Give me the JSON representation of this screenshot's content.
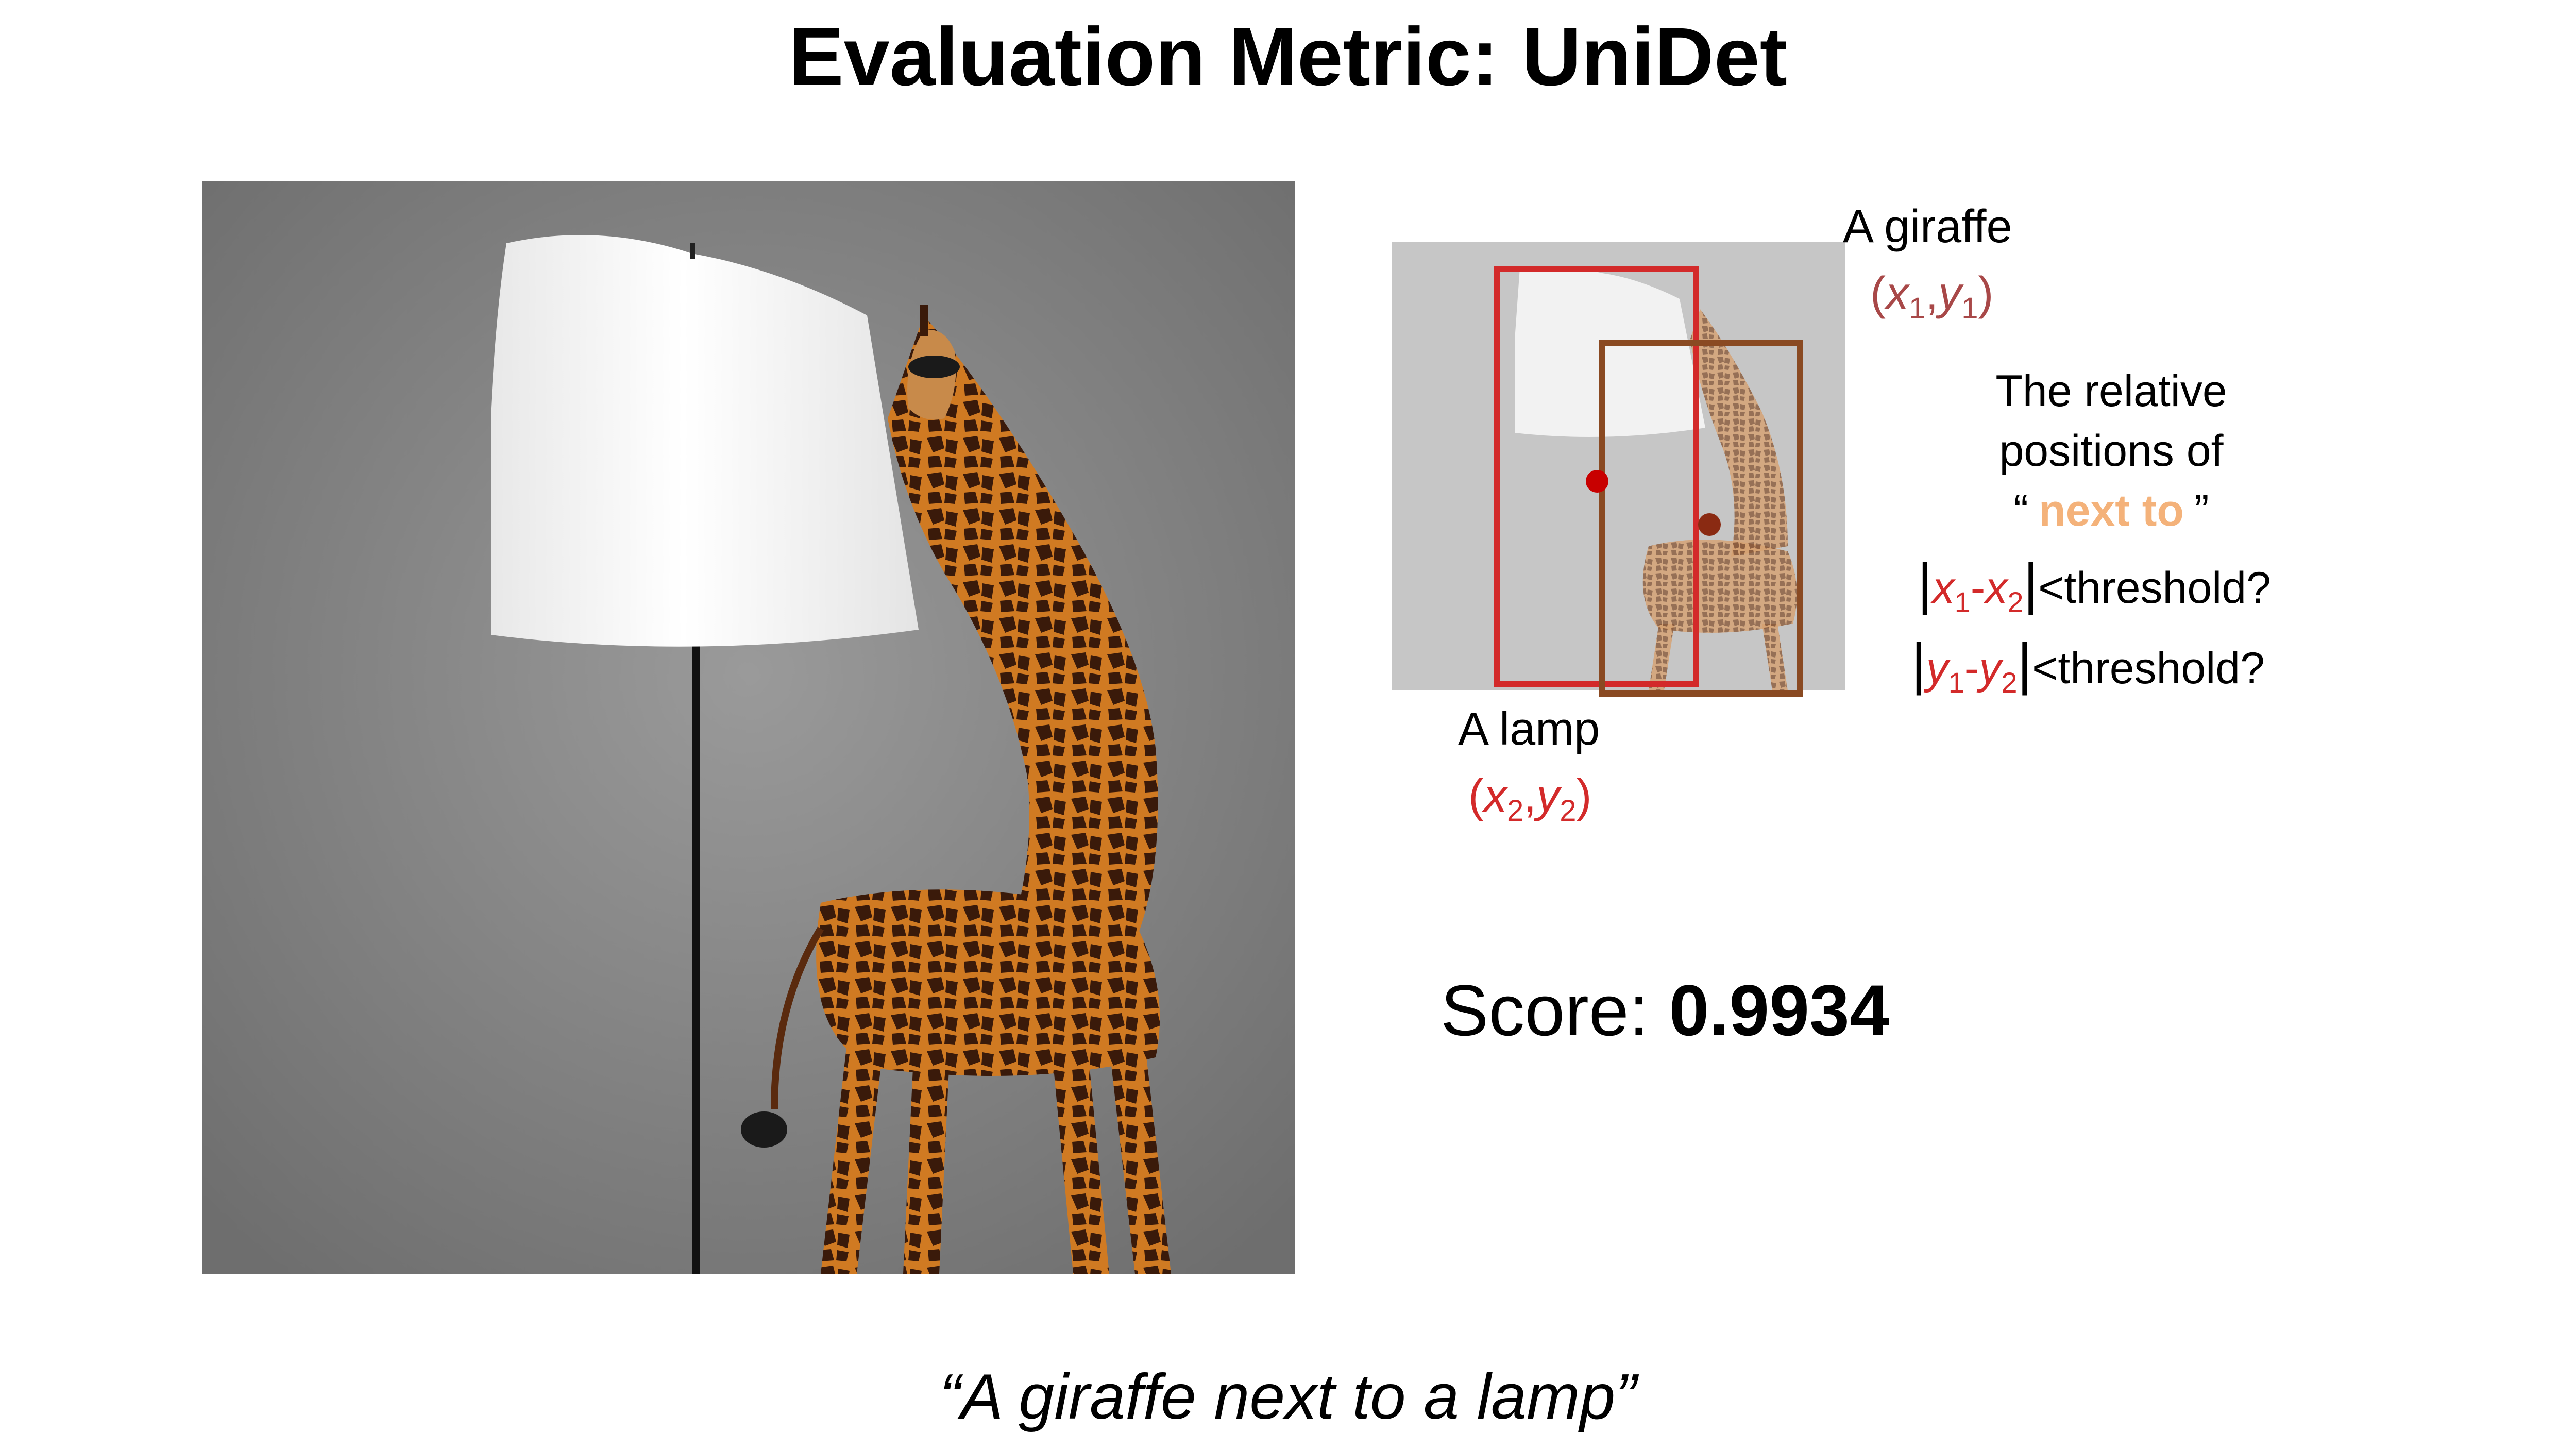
{
  "title": "Evaluation Metric: UniDet",
  "detection": {
    "giraffe_label": "A giraffe",
    "giraffe_coord": {
      "open": "(",
      "x": "x",
      "x_sub": "1",
      "comma": ",",
      "y": "y",
      "y_sub": "1",
      "close": ")"
    },
    "lamp_label": "A lamp",
    "lamp_coord": {
      "open": "(",
      "x": "x",
      "x_sub": "2",
      "comma": ",",
      "y": "y",
      "y_sub": "2",
      "close": ")"
    },
    "relation_line1": "The relative",
    "relation_line2": "positions of",
    "relation_open_quote": "“",
    "relation_phrase": "next to",
    "relation_close_quote": "”",
    "cond_x": {
      "bar": "|",
      "a": "x",
      "a_sub": "1",
      "minus": "-",
      "b": "x",
      "b_sub": "2",
      "tail": "<threshold?"
    },
    "cond_y": {
      "bar": "|",
      "a": "y",
      "a_sub": "1",
      "minus": "-",
      "b": "y",
      "b_sub": "2",
      "tail": "<threshold?"
    }
  },
  "score": {
    "label": "Score: ",
    "value": "0.9934"
  },
  "caption": "“A giraffe next to a lamp”",
  "colors": {
    "lamp_box": "#d32a2a",
    "giraffe_box": "#8a4a22",
    "coord_text": "#a84848",
    "highlight": "#f4b27a",
    "photo_bg": "#8a8a8a"
  }
}
